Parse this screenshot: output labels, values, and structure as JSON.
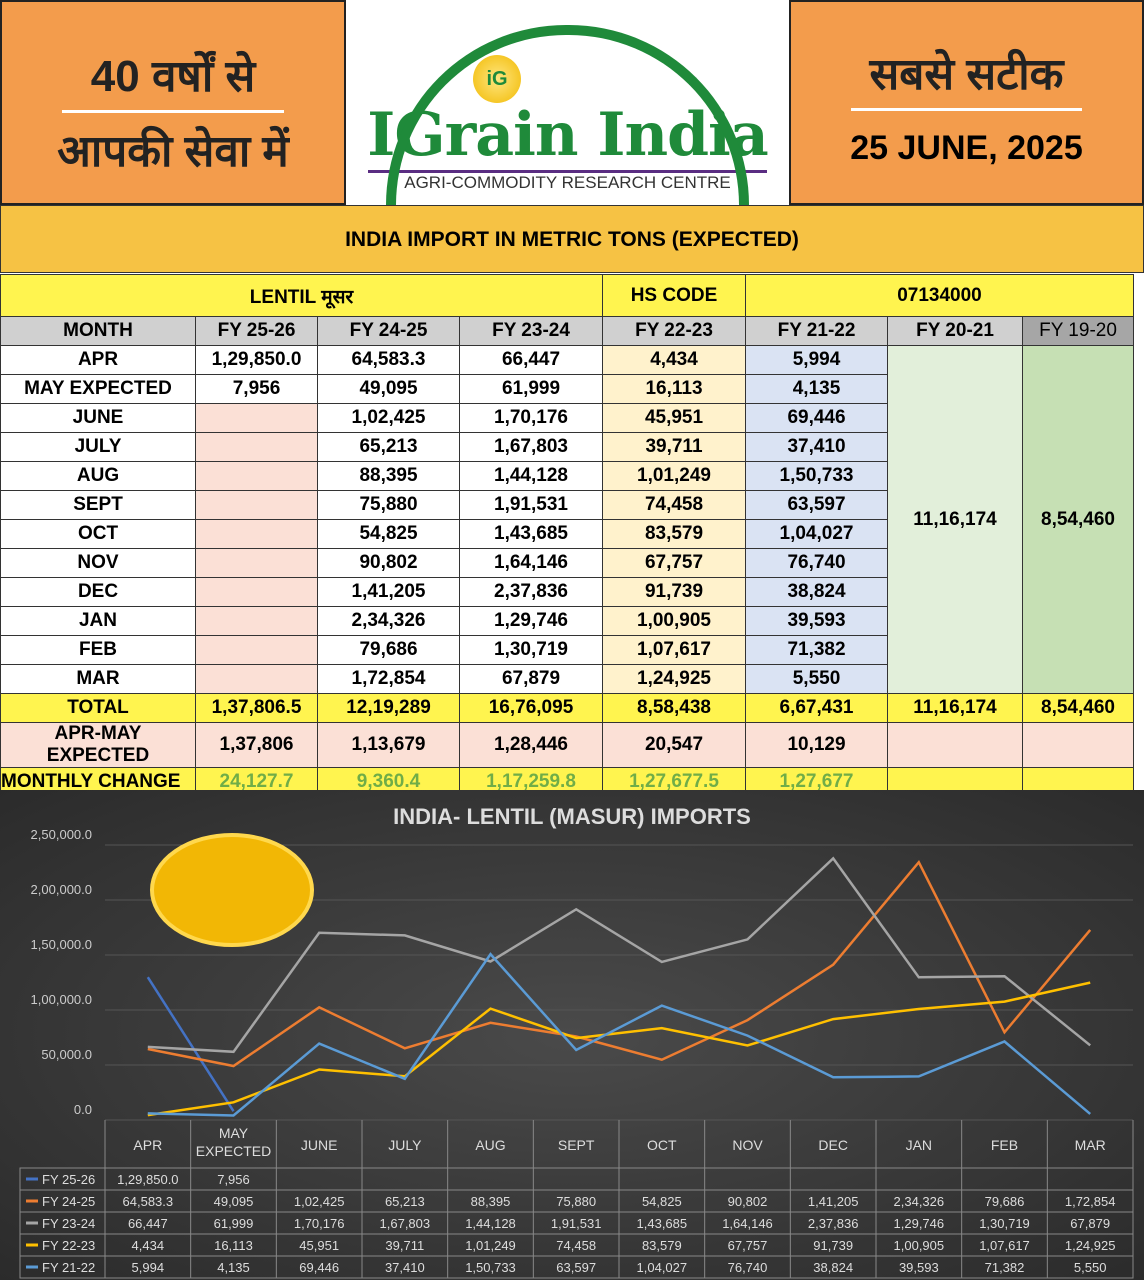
{
  "header": {
    "left_line1": "40 वर्षों से",
    "left_line2": "आपकी सेवा में",
    "brand": "IGrain India",
    "tagline": "AGRI-COMMODITY RESEARCH CENTRE",
    "logo_badge": "iG",
    "right_line1": "सबसे सटीक",
    "date": "25 JUNE, 2025"
  },
  "table": {
    "title": "INDIA IMPORT IN METRIC TONS (EXPECTED)",
    "commodity": "LENTIL मूसर",
    "hs_label": "HS CODE",
    "hs_code": "07134000",
    "columns": [
      "MONTH",
      "FY 25-26",
      "FY 24-25",
      "FY 23-24",
      "FY 22-23",
      "FY 21-22",
      "FY 20-21",
      "FY 19-20"
    ],
    "rows": [
      [
        "APR",
        "1,29,850.0",
        "64,583.3",
        "66,447",
        "4,434",
        "5,994"
      ],
      [
        "MAY EXPECTED",
        "7,956",
        "49,095",
        "61,999",
        "16,113",
        "4,135"
      ],
      [
        "JUNE",
        "",
        "1,02,425",
        "1,70,176",
        "45,951",
        "69,446"
      ],
      [
        "JULY",
        "",
        "65,213",
        "1,67,803",
        "39,711",
        "37,410"
      ],
      [
        "AUG",
        "",
        "88,395",
        "1,44,128",
        "1,01,249",
        "1,50,733"
      ],
      [
        "SEPT",
        "",
        "75,880",
        "1,91,531",
        "74,458",
        "63,597"
      ],
      [
        "OCT",
        "",
        "54,825",
        "1,43,685",
        "83,579",
        "1,04,027"
      ],
      [
        "NOV",
        "",
        "90,802",
        "1,64,146",
        "67,757",
        "76,740"
      ],
      [
        "DEC",
        "",
        "1,41,205",
        "2,37,836",
        "91,739",
        "38,824"
      ],
      [
        "JAN",
        "",
        "2,34,326",
        "1,29,746",
        "1,00,905",
        "39,593"
      ],
      [
        "FEB",
        "",
        "79,686",
        "1,30,719",
        "1,07,617",
        "71,382"
      ],
      [
        "MAR",
        "",
        "1,72,854",
        "67,879",
        "1,24,925",
        "5,550"
      ]
    ],
    "fy2021_total": "11,16,174",
    "fy1920_total": "8,54,460",
    "total": [
      "TOTAL",
      "1,37,806.5",
      "12,19,289",
      "16,76,095",
      "8,58,438",
      "6,67,431",
      "11,16,174",
      "8,54,460"
    ],
    "apr_may": [
      "APR-MAY EXPECTED",
      "1,37,806",
      "1,13,679",
      "1,28,446",
      "20,547",
      "10,129"
    ],
    "monthly_change": [
      "MONTHLY CHANGE",
      "24,127.7",
      "9,360.4",
      "1,17,259.8",
      "1,27,677.5",
      "1,27,677"
    ]
  },
  "chart_data": {
    "type": "line",
    "title": "INDIA- LENTIL (MASUR) IMPORTS",
    "categories": [
      "APR",
      "MAY EXPECTED",
      "JUNE",
      "JULY",
      "AUG",
      "SEPT",
      "OCT",
      "NOV",
      "DEC",
      "JAN",
      "FEB",
      "MAR"
    ],
    "category_lines": [
      [
        "APR"
      ],
      [
        "MAY",
        "EXPECTED"
      ],
      [
        "JUNE"
      ],
      [
        "JULY"
      ],
      [
        "AUG"
      ],
      [
        "SEPT"
      ],
      [
        "OCT"
      ],
      [
        "NOV"
      ],
      [
        "DEC"
      ],
      [
        "JAN"
      ],
      [
        "FEB"
      ],
      [
        "MAR"
      ]
    ],
    "ylim": [
      0,
      250000
    ],
    "yticks": [
      {
        "v": 0,
        "label": "0.0"
      },
      {
        "v": 50000,
        "label": "50,000.0"
      },
      {
        "v": 100000,
        "label": "1,00,000.0"
      },
      {
        "v": 150000,
        "label": "1,50,000.0"
      },
      {
        "v": 200000,
        "label": "2,00,000.0"
      },
      {
        "v": 250000,
        "label": "2,50,000.0"
      }
    ],
    "grid": true,
    "legend": "data-table-below",
    "series": [
      {
        "name": "FY 25-26",
        "color": "#4472c4",
        "values": [
          129850,
          7956,
          null,
          null,
          null,
          null,
          null,
          null,
          null,
          null,
          null,
          null
        ],
        "labels": [
          "1,29,850.0",
          "7,956",
          "",
          "",
          "",
          "",
          "",
          "",
          "",
          "",
          "",
          ""
        ]
      },
      {
        "name": "FY 24-25",
        "color": "#ed7d31",
        "values": [
          64583.3,
          49095,
          102425,
          65213,
          88395,
          75880,
          54825,
          90802,
          141205,
          234326,
          79686,
          172854
        ],
        "labels": [
          "64,583.3",
          "49,095",
          "1,02,425",
          "65,213",
          "88,395",
          "75,880",
          "54,825",
          "90,802",
          "1,41,205",
          "2,34,326",
          "79,686",
          "1,72,854"
        ]
      },
      {
        "name": "FY 23-24",
        "color": "#a5a5a5",
        "values": [
          66447,
          61999,
          170176,
          167803,
          144128,
          191531,
          143685,
          164146,
          237836,
          129746,
          130719,
          67879
        ],
        "labels": [
          "66,447",
          "61,999",
          "1,70,176",
          "1,67,803",
          "1,44,128",
          "1,91,531",
          "1,43,685",
          "1,64,146",
          "2,37,836",
          "1,29,746",
          "1,30,719",
          "67,879"
        ]
      },
      {
        "name": "FY 22-23",
        "color": "#ffc000",
        "values": [
          4434,
          16113,
          45951,
          39711,
          101249,
          74458,
          83579,
          67757,
          91739,
          100905,
          107617,
          124925
        ],
        "labels": [
          "4,434",
          "16,113",
          "45,951",
          "39,711",
          "1,01,249",
          "74,458",
          "83,579",
          "67,757",
          "91,739",
          "1,00,905",
          "1,07,617",
          "1,24,925"
        ]
      },
      {
        "name": "FY 21-22",
        "color": "#5b9bd5",
        "values": [
          5994,
          4135,
          69446,
          37410,
          150733,
          63597,
          104027,
          76740,
          38824,
          39593,
          71382,
          5550
        ],
        "labels": [
          "5,994",
          "4,135",
          "69,446",
          "37,410",
          "1,50,733",
          "63,597",
          "1,04,027",
          "76,740",
          "38,824",
          "39,593",
          "71,382",
          "5,550"
        ]
      }
    ]
  }
}
